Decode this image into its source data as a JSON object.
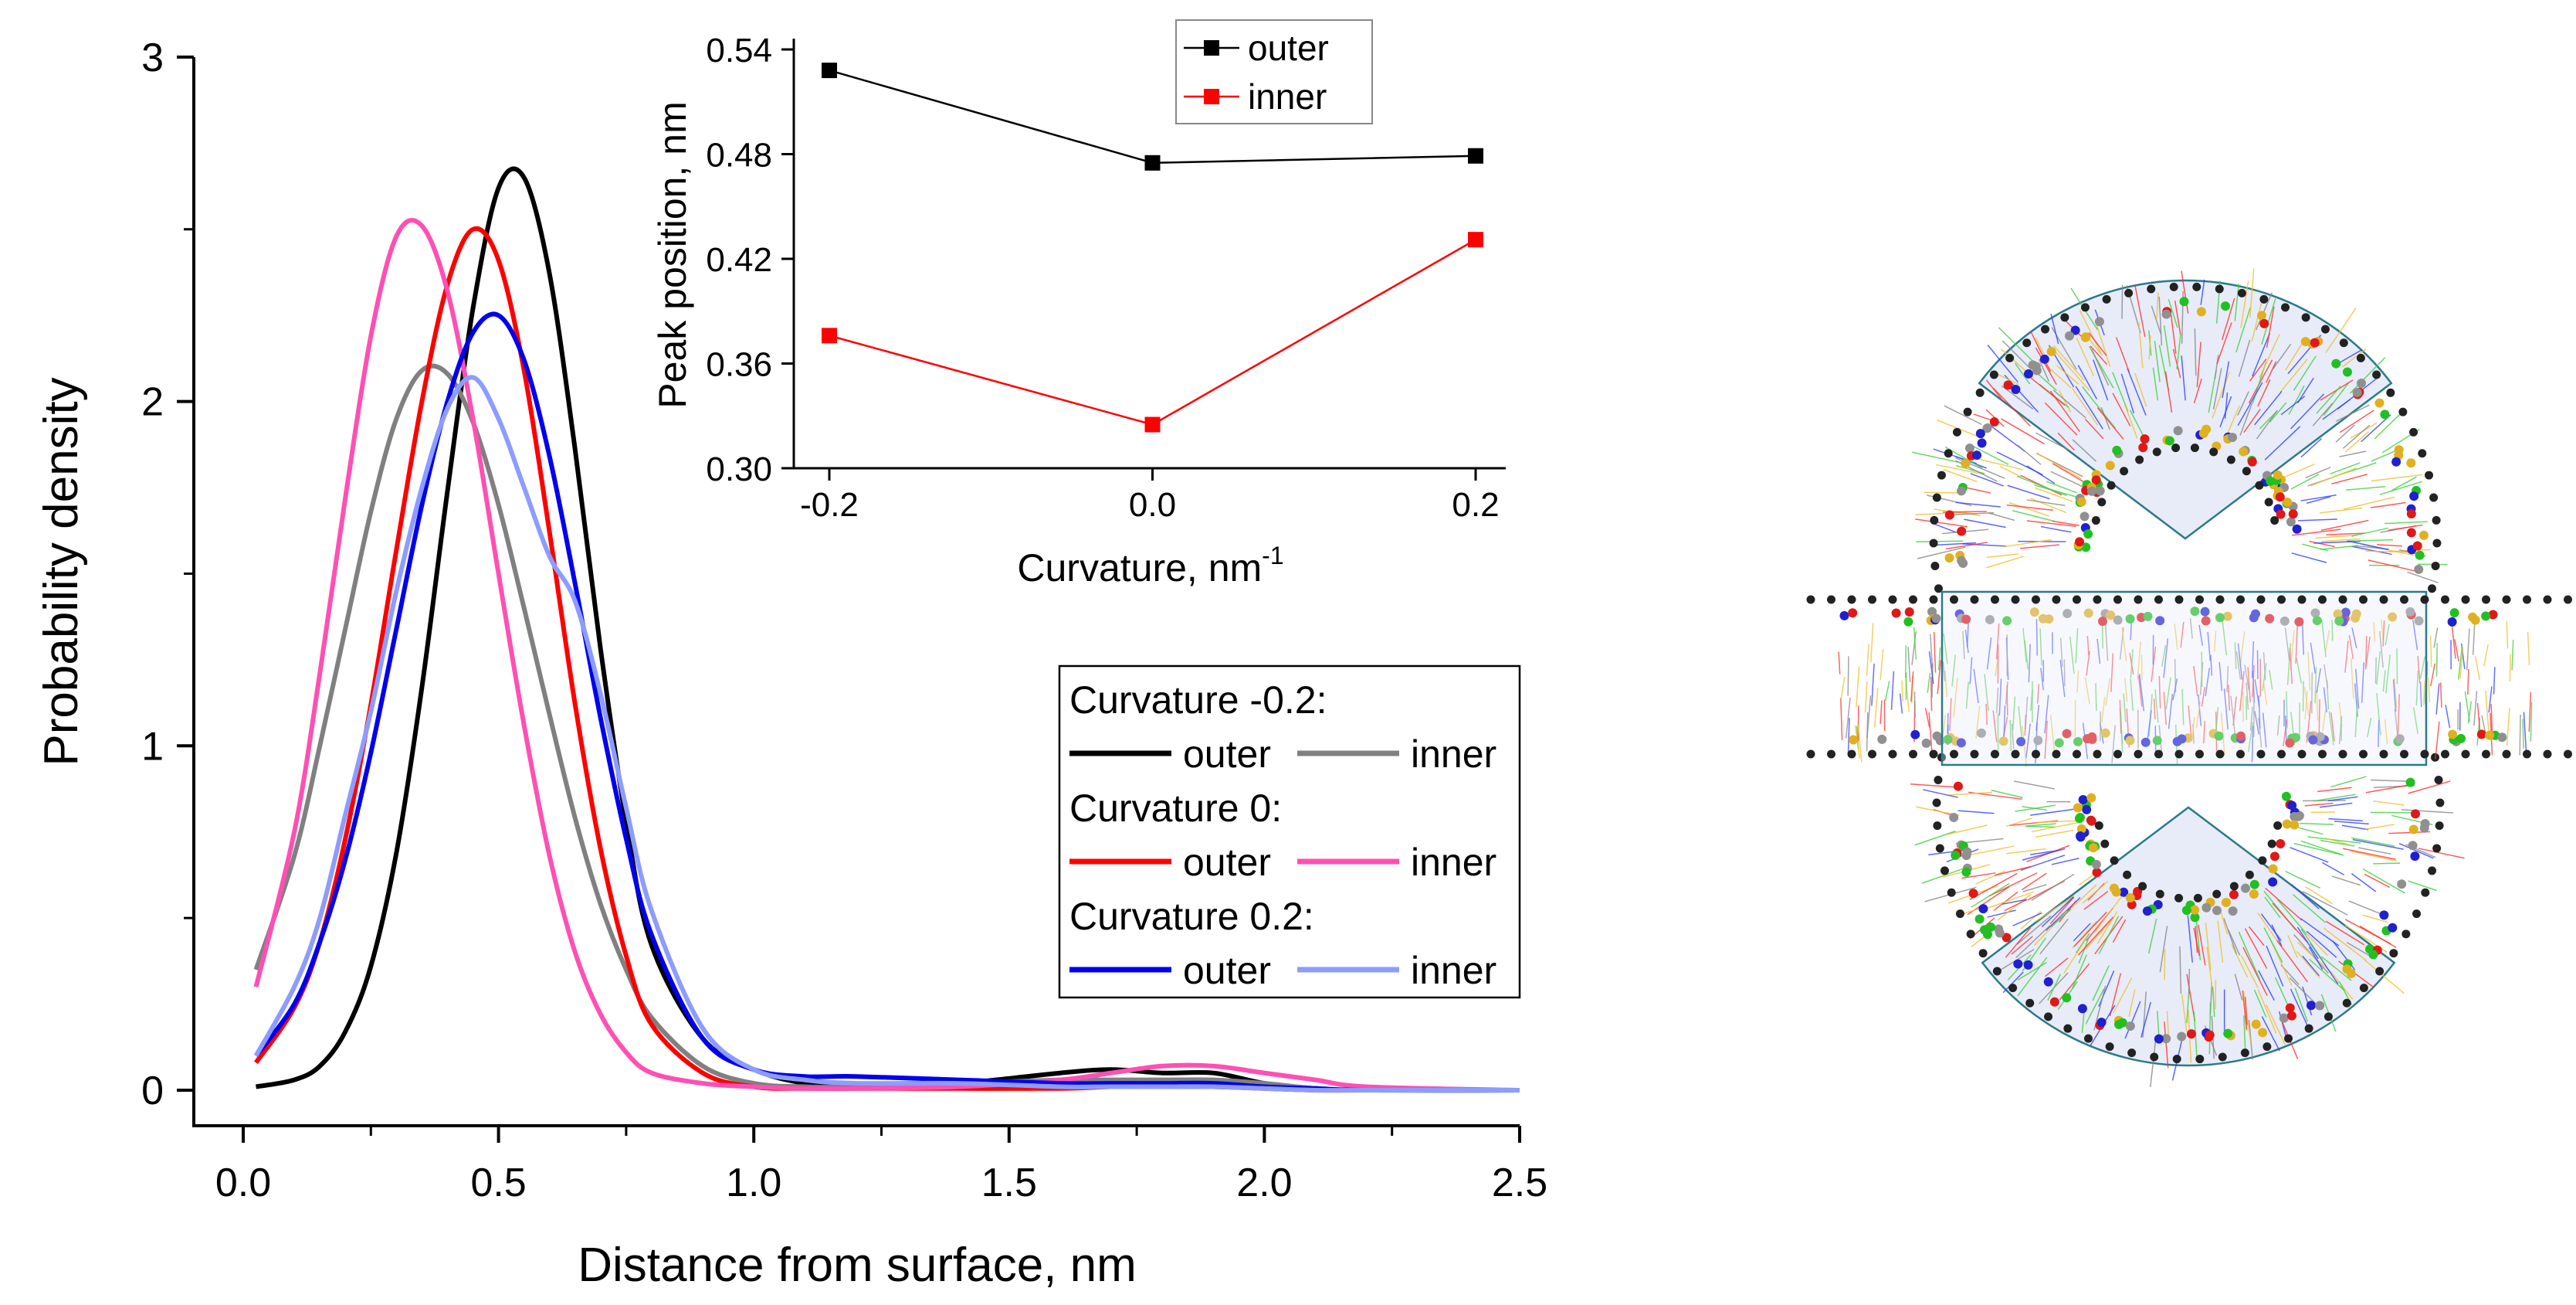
{
  "chart_data": [
    {
      "type": "line",
      "title": "",
      "xlabel": "Distance from surface, nm",
      "ylabel": "Probability density",
      "xlim": [
        -0.1,
        2.5
      ],
      "ylim": [
        -0.1,
        3
      ],
      "xticks": [
        "0.0",
        "0.5",
        "1.0",
        "1.5",
        "2.0",
        "2.5"
      ],
      "xtick_values": [
        0,
        0.5,
        1.0,
        1.5,
        2.0,
        2.5
      ],
      "yticks": [
        "0",
        "1",
        "2",
        "3"
      ],
      "ytick_values": [
        0,
        1,
        2,
        3
      ],
      "grid": false,
      "legend_placement": "right",
      "legend": [
        {
          "heading": "Curvature -0.2:",
          "entries": [
            {
              "series": 0,
              "label": "outer"
            },
            {
              "series": 1,
              "label": "inner"
            }
          ]
        },
        {
          "heading": "Curvature 0:",
          "entries": [
            {
              "series": 2,
              "label": "outer"
            },
            {
              "series": 3,
              "label": "inner"
            }
          ]
        },
        {
          "heading": "Curvature 0.2:",
          "entries": [
            {
              "series": 4,
              "label": "outer"
            },
            {
              "series": 5,
              "label": "inner"
            }
          ]
        }
      ],
      "x": [
        0.025,
        0.1,
        0.15,
        0.2,
        0.25,
        0.3,
        0.35,
        0.4,
        0.45,
        0.5,
        0.55,
        0.6,
        0.65,
        0.7,
        0.75,
        0.8,
        0.9,
        1.0,
        1.1,
        1.2,
        1.4,
        1.6,
        1.7,
        1.8,
        1.9,
        2.0,
        2.1,
        2.2,
        2.5
      ],
      "series": [
        {
          "name": "Curvature -0.2 outer",
          "color": "#000000",
          "values": [
            0.01,
            0.03,
            0.07,
            0.17,
            0.36,
            0.69,
            1.17,
            1.74,
            2.27,
            2.62,
            2.65,
            2.37,
            1.86,
            1.28,
            0.78,
            0.42,
            0.15,
            0.06,
            0.02,
            0.01,
            0.02,
            0.05,
            0.06,
            0.05,
            0.05,
            0.02,
            0.005,
            0,
            0
          ]
        },
        {
          "name": "Curvature -0.2 inner",
          "color": "#808080",
          "values": [
            0.35,
            0.68,
            1.0,
            1.34,
            1.68,
            1.95,
            2.09,
            2.08,
            1.94,
            1.7,
            1.4,
            1.09,
            0.79,
            0.54,
            0.35,
            0.21,
            0.07,
            0.02,
            0.01,
            0.01,
            0.02,
            0.03,
            0.03,
            0.03,
            0.03,
            0.02,
            0.005,
            0,
            0
          ]
        },
        {
          "name": "Curvature 0 outer",
          "color": "#ff0000",
          "values": [
            0.08,
            0.24,
            0.43,
            0.73,
            1.12,
            1.57,
            2.0,
            2.34,
            2.5,
            2.41,
            2.09,
            1.62,
            1.12,
            0.7,
            0.39,
            0.19,
            0.05,
            0.01,
            0.005,
            0.005,
            0.005,
            0.005,
            0.01,
            0.01,
            0.01,
            0.005,
            0,
            0,
            0
          ]
        },
        {
          "name": "Curvature 0 inner",
          "color": "#ff4fb4",
          "values": [
            0.3,
            0.75,
            1.21,
            1.72,
            2.19,
            2.48,
            2.51,
            2.32,
            1.95,
            1.5,
            1.06,
            0.68,
            0.4,
            0.22,
            0.11,
            0.05,
            0.02,
            0.01,
            0.005,
            0.005,
            0.01,
            0.03,
            0.05,
            0.07,
            0.07,
            0.05,
            0.03,
            0.01,
            0
          ]
        },
        {
          "name": "Curvature 0.2 outer",
          "color": "#0000ee",
          "values": [
            0.1,
            0.25,
            0.43,
            0.67,
            0.98,
            1.34,
            1.7,
            2.0,
            2.2,
            2.25,
            2.12,
            1.84,
            1.47,
            1.08,
            0.73,
            0.45,
            0.15,
            0.06,
            0.04,
            0.04,
            0.03,
            0.02,
            0.02,
            0.02,
            0.02,
            0.01,
            0.005,
            0,
            0
          ]
        },
        {
          "name": "Curvature 0.2 inner",
          "color": "#8c9cff",
          "values": [
            0.1,
            0.3,
            0.5,
            0.8,
            1.1,
            1.45,
            1.75,
            1.98,
            2.07,
            1.95,
            1.75,
            1.55,
            1.42,
            1.15,
            0.82,
            0.52,
            0.18,
            0.06,
            0.03,
            0.02,
            0.02,
            0.01,
            0.01,
            0.01,
            0.01,
            0.005,
            0,
            0,
            0
          ]
        }
      ]
    },
    {
      "type": "line",
      "title": "",
      "xlabel": "Curvature, nm",
      "xlabel_superscript": "-1",
      "ylabel": "Peak position, nm",
      "xlim": [
        -0.22,
        0.22
      ],
      "ylim": [
        0.3,
        0.54
      ],
      "xticks": [
        "-0.2",
        "0.0",
        "0.2"
      ],
      "xtick_values": [
        -0.2,
        0.0,
        0.2
      ],
      "yticks": [
        "0.30",
        "0.36",
        "0.42",
        "0.48",
        "0.54"
      ],
      "ytick_values": [
        0.3,
        0.36,
        0.42,
        0.48,
        0.54
      ],
      "grid": false,
      "legend_placement": "top-right",
      "x": [
        -0.2,
        0.0,
        0.2
      ],
      "series": [
        {
          "name": "outer",
          "color": "#000000",
          "marker": "square",
          "values": [
            0.528,
            0.475,
            0.479
          ]
        },
        {
          "name": "inner",
          "color": "#ff0000",
          "marker": "square",
          "values": [
            0.376,
            0.325,
            0.431
          ]
        }
      ]
    }
  ]
}
